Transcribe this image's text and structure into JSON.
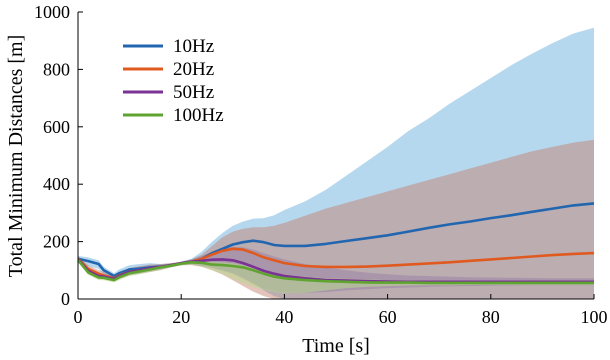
{
  "chart_data": {
    "type": "area",
    "xlabel": "Time [s]",
    "ylabel": "Total Minimum Distances [m]",
    "xlim": [
      0,
      100
    ],
    "ylim": [
      0,
      1000
    ],
    "xticks": [
      0,
      20,
      40,
      60,
      80,
      100
    ],
    "yticks": [
      0,
      200,
      400,
      600,
      800,
      1000
    ],
    "grid": false,
    "legend_position": "top-left",
    "series": [
      {
        "name": "10Hz",
        "color": "#2266b0",
        "band_color": "#9ecbea",
        "band_opacity": 0.75,
        "x": [
          0,
          2,
          4,
          5,
          7,
          8,
          10,
          12,
          14,
          16,
          18,
          20,
          22,
          24,
          26,
          28,
          30,
          32,
          34,
          36,
          38,
          40,
          44,
          48,
          52,
          56,
          60,
          64,
          68,
          72,
          76,
          80,
          84,
          88,
          92,
          96,
          100
        ],
        "mean": [
          140,
          132,
          122,
          100,
          80,
          90,
          103,
          106,
          110,
          113,
          118,
          124,
          130,
          140,
          160,
          175,
          190,
          198,
          203,
          198,
          188,
          185,
          185,
          192,
          202,
          212,
          222,
          235,
          248,
          260,
          270,
          282,
          292,
          304,
          315,
          326,
          333
        ],
        "upper": [
          150,
          145,
          135,
          112,
          90,
          103,
          118,
          122,
          125,
          122,
          124,
          130,
          140,
          165,
          200,
          230,
          255,
          270,
          280,
          282,
          292,
          310,
          340,
          380,
          430,
          480,
          530,
          585,
          630,
          680,
          725,
          770,
          815,
          855,
          892,
          925,
          945
        ],
        "lower": [
          125,
          115,
          105,
          85,
          68,
          75,
          85,
          90,
          95,
          102,
          110,
          118,
          120,
          115,
          110,
          100,
          90,
          75,
          55,
          30,
          10,
          0,
          0,
          0,
          0,
          0,
          0,
          0,
          0,
          0,
          0,
          0,
          0,
          0,
          0,
          0,
          0
        ]
      },
      {
        "name": "20Hz",
        "color": "#e05a1f",
        "band_color": "#c47a66",
        "band_opacity": 0.45,
        "x": [
          0,
          2,
          4,
          5,
          7,
          8,
          10,
          12,
          14,
          16,
          18,
          20,
          22,
          24,
          26,
          28,
          30,
          32,
          34,
          36,
          38,
          40,
          44,
          48,
          52,
          56,
          60,
          64,
          68,
          72,
          76,
          80,
          84,
          88,
          92,
          96,
          100
        ],
        "mean": [
          140,
          105,
          88,
          82,
          72,
          82,
          95,
          100,
          106,
          112,
          118,
          124,
          130,
          140,
          155,
          168,
          175,
          172,
          160,
          145,
          135,
          125,
          115,
          112,
          112,
          113,
          116,
          120,
          124,
          128,
          133,
          138,
          143,
          148,
          153,
          157,
          160
        ],
        "upper": [
          148,
          118,
          100,
          95,
          82,
          93,
          108,
          115,
          120,
          122,
          125,
          130,
          138,
          155,
          185,
          215,
          235,
          245,
          250,
          250,
          255,
          265,
          290,
          315,
          335,
          355,
          375,
          395,
          415,
          435,
          455,
          475,
          495,
          515,
          530,
          545,
          555
        ],
        "lower": [
          130,
          92,
          76,
          70,
          62,
          70,
          82,
          88,
          94,
          100,
          110,
          117,
          118,
          112,
          100,
          85,
          65,
          45,
          25,
          10,
          0,
          0,
          0,
          0,
          0,
          0,
          0,
          0,
          0,
          0,
          0,
          0,
          0,
          0,
          0,
          0,
          0
        ]
      },
      {
        "name": "50Hz",
        "color": "#7a3294",
        "band_color": "#8a6ea0",
        "band_opacity": 0.35,
        "x": [
          0,
          2,
          4,
          5,
          7,
          8,
          10,
          12,
          14,
          16,
          18,
          20,
          22,
          24,
          26,
          28,
          30,
          32,
          34,
          36,
          38,
          40,
          44,
          48,
          52,
          56,
          60,
          64,
          68,
          72,
          76,
          80,
          84,
          88,
          92,
          96,
          100
        ],
        "mean": [
          138,
          98,
          80,
          78,
          70,
          80,
          95,
          100,
          108,
          112,
          118,
          125,
          130,
          133,
          137,
          138,
          135,
          125,
          112,
          98,
          88,
          80,
          72,
          66,
          64,
          62,
          61,
          60,
          60,
          60,
          60,
          60,
          60,
          60,
          60,
          60,
          60
        ],
        "upper": [
          145,
          108,
          90,
          88,
          80,
          90,
          105,
          112,
          118,
          120,
          124,
          130,
          138,
          150,
          165,
          178,
          182,
          180,
          172,
          160,
          148,
          138,
          122,
          110,
          100,
          92,
          86,
          82,
          80,
          78,
          76,
          75,
          74,
          73,
          72,
          72,
          72
        ],
        "lower": [
          130,
          88,
          70,
          68,
          62,
          70,
          85,
          90,
          98,
          105,
          112,
          120,
          122,
          115,
          108,
          98,
          88,
          70,
          52,
          36,
          28,
          22,
          22,
          24,
          30,
          34,
          38,
          40,
          42,
          44,
          45,
          46,
          47,
          48,
          48,
          48,
          48
        ]
      },
      {
        "name": "100Hz",
        "color": "#5fa331",
        "band_color": "#b7d98e",
        "band_opacity": 0.55,
        "x": [
          0,
          2,
          4,
          5,
          7,
          8,
          10,
          12,
          14,
          16,
          18,
          20,
          22,
          24,
          26,
          28,
          30,
          32,
          34,
          36,
          38,
          40,
          44,
          48,
          52,
          56,
          60,
          64,
          68,
          72,
          76,
          80,
          84,
          88,
          92,
          96,
          100
        ],
        "mean": [
          136,
          92,
          75,
          74,
          66,
          76,
          90,
          96,
          103,
          110,
          116,
          123,
          128,
          126,
          120,
          118,
          115,
          110,
          100,
          88,
          78,
          72,
          66,
          62,
          60,
          58,
          57,
          57,
          56,
          56,
          56,
          56,
          56,
          56,
          56,
          56,
          56
        ],
        "upper": [
          142,
          100,
          84,
          83,
          75,
          86,
          100,
          106,
          112,
          118,
          122,
          128,
          133,
          132,
          130,
          128,
          125,
          118,
          108,
          98,
          90,
          84,
          78,
          72,
          70,
          68,
          66,
          65,
          64,
          64,
          63,
          63,
          63,
          63,
          63,
          63,
          63
        ],
        "lower": [
          128,
          84,
          66,
          65,
          58,
          66,
          80,
          86,
          94,
          102,
          110,
          118,
          120,
          112,
          100,
          88,
          70,
          55,
          42,
          32,
          25,
          20,
          22,
          30,
          38,
          42,
          45,
          47,
          48,
          48,
          49,
          49,
          49,
          49,
          49,
          49,
          49
        ]
      }
    ]
  }
}
